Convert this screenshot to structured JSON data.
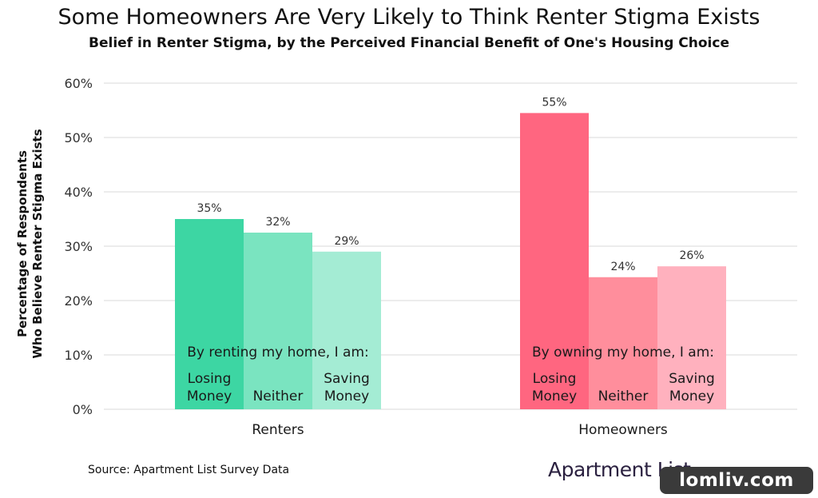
{
  "chart_data": {
    "type": "bar",
    "title": "Some Homeowners Are Very Likely to Think Renter Stigma Exists",
    "subtitle": "Belief in Renter Stigma, by the Perceived Financial Benefit of One's Housing Choice",
    "ylabel_lines": [
      "Percentage of Respondents",
      "Who Believe Renter Stigma Exists"
    ],
    "ylim": [
      0,
      60
    ],
    "yticks": [
      0,
      10,
      20,
      30,
      40,
      50,
      60
    ],
    "ytick_labels": [
      "0%",
      "10%",
      "20%",
      "30%",
      "40%",
      "50%",
      "60%"
    ],
    "grid": true,
    "groups": [
      {
        "name": "Renters",
        "caption": "By renting my home, I am:",
        "bars": [
          {
            "label_lines": [
              "Losing",
              "Money"
            ],
            "value": 35,
            "value_label": "35%",
            "color": "#3dd6a3"
          },
          {
            "label_lines": [
              "Neither"
            ],
            "value": 32.5,
            "value_label": "32%",
            "color": "#7ae4c0"
          },
          {
            "label_lines": [
              "Saving",
              "Money"
            ],
            "value": 29,
            "value_label": "29%",
            "color": "#a4ecd4"
          }
        ]
      },
      {
        "name": "Homeowners",
        "caption": "By owning my home, I am:",
        "bars": [
          {
            "label_lines": [
              "Losing",
              "Money"
            ],
            "value": 54.5,
            "value_label": "55%",
            "color": "#ff6680"
          },
          {
            "label_lines": [
              "Neither"
            ],
            "value": 24.3,
            "value_label": "24%",
            "color": "#ff8e9c"
          },
          {
            "label_lines": [
              "Saving",
              "Money"
            ],
            "value": 26.3,
            "value_label": "26%",
            "color": "#ffb1be"
          }
        ]
      }
    ]
  },
  "source": "Source: Apartment List Survey Data",
  "logo_text": "Apartment List",
  "watermark": "lomliv.com"
}
